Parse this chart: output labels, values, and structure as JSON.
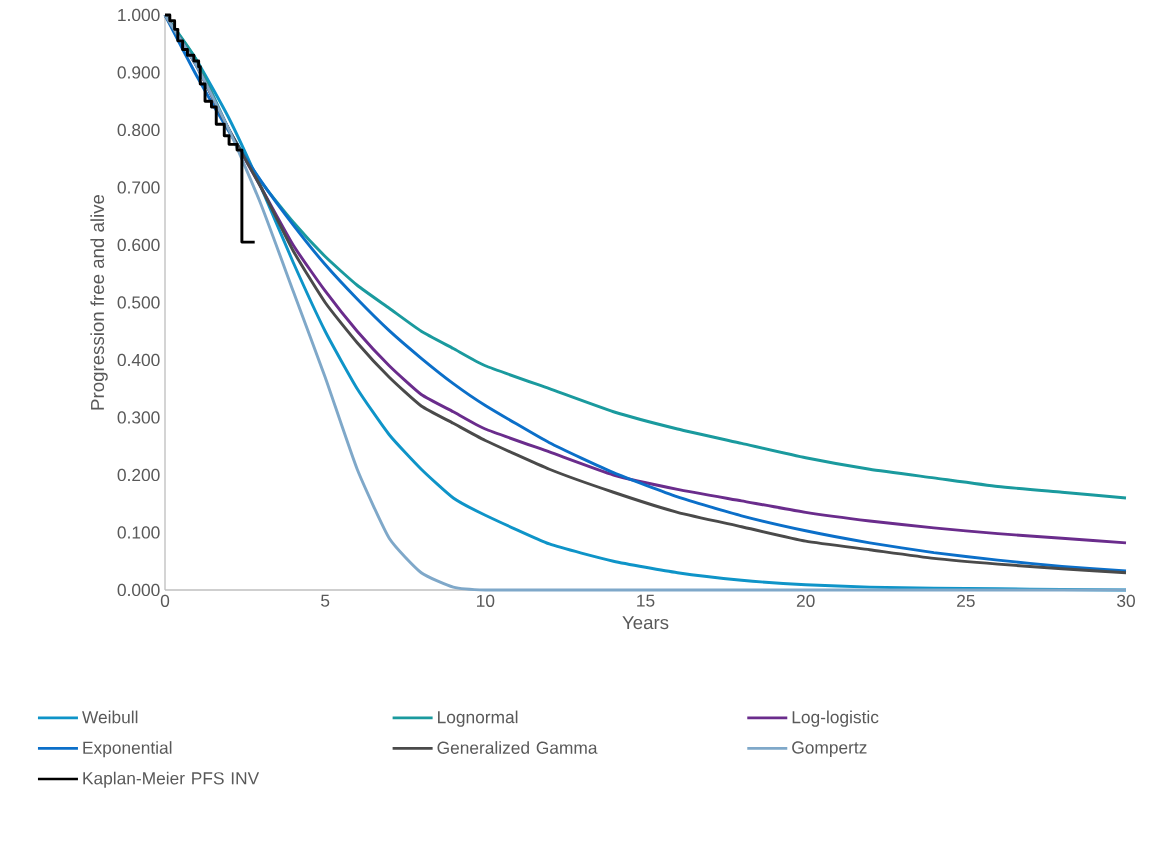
{
  "chart_data": {
    "type": "line",
    "xlabel": "Years",
    "ylabel": "Progression free and alive",
    "x": [
      0,
      1,
      2,
      3,
      4,
      5,
      6,
      7,
      8,
      9,
      10,
      12,
      14,
      16,
      18,
      20,
      22,
      24,
      26,
      28,
      30
    ],
    "series": [
      {
        "name": "Weibull",
        "color": "#0e94c8",
        "values": [
          1,
          0.92,
          0.82,
          0.7,
          0.57,
          0.45,
          0.35,
          0.27,
          0.21,
          0.16,
          0.13,
          0.08,
          0.05,
          0.03,
          0.017,
          0.009,
          0.005,
          0.003,
          0.002,
          0.001,
          0
        ]
      },
      {
        "name": "Lognormal",
        "color": "#1a9a9e",
        "values": [
          1,
          0.92,
          0.8,
          0.71,
          0.64,
          0.58,
          0.53,
          0.49,
          0.45,
          0.42,
          0.39,
          0.35,
          0.31,
          0.28,
          0.255,
          0.23,
          0.21,
          0.195,
          0.18,
          0.17,
          0.16
        ]
      },
      {
        "name": "Log-logistic",
        "color": "#6a2c8c",
        "values": [
          1,
          0.91,
          0.8,
          0.7,
          0.6,
          0.52,
          0.45,
          0.39,
          0.34,
          0.31,
          0.28,
          0.24,
          0.2,
          0.175,
          0.155,
          0.135,
          0.12,
          0.108,
          0.098,
          0.09,
          0.082
        ]
      },
      {
        "name": "Exponential",
        "color": "#0b6fc9",
        "values": [
          1,
          0.893,
          0.797,
          0.711,
          0.635,
          0.566,
          0.506,
          0.451,
          0.403,
          0.359,
          0.321,
          0.256,
          0.204,
          0.162,
          0.129,
          0.103,
          0.082,
          0.065,
          0.052,
          0.041,
          0.033
        ]
      },
      {
        "name": "Generalized Gamma",
        "color": "#4a4a4a",
        "values": [
          1,
          0.91,
          0.8,
          0.7,
          0.59,
          0.5,
          0.43,
          0.37,
          0.32,
          0.29,
          0.26,
          0.21,
          0.17,
          0.135,
          0.11,
          0.085,
          0.07,
          0.055,
          0.045,
          0.037,
          0.03
        ]
      },
      {
        "name": "Gompertz",
        "color": "#7fa8c9",
        "values": [
          1,
          0.91,
          0.8,
          0.67,
          0.52,
          0.37,
          0.21,
          0.09,
          0.03,
          0.005,
          0,
          0,
          0,
          0,
          0,
          0,
          0,
          0,
          0,
          0,
          0
        ]
      },
      {
        "name": "Kaplan-Meier PFS INV",
        "color": "#000000",
        "type": "step",
        "x": [
          0,
          0.15,
          0.3,
          0.4,
          0.55,
          0.7,
          0.9,
          1.05,
          1.1,
          1.25,
          1.45,
          1.6,
          1.85,
          2.0,
          2.25,
          2.4,
          2.8
        ],
        "values": [
          1,
          0.99,
          0.975,
          0.955,
          0.94,
          0.93,
          0.92,
          0.91,
          0.88,
          0.85,
          0.84,
          0.81,
          0.79,
          0.775,
          0.765,
          0.605,
          0.605
        ]
      }
    ],
    "xlim": [
      0,
      30
    ],
    "xticks": [
      0,
      5,
      10,
      15,
      20,
      25,
      30
    ],
    "ylim": [
      0,
      1
    ],
    "yticks": [
      {
        "value": 0,
        "label": "0.000"
      },
      {
        "value": 0.1,
        "label": "0.100"
      },
      {
        "value": 0.2,
        "label": "0.200"
      },
      {
        "value": 0.3,
        "label": "0.300"
      },
      {
        "value": 0.4,
        "label": "0.400"
      },
      {
        "value": 0.5,
        "label": "0.500"
      },
      {
        "value": 0.6,
        "label": "0.600"
      },
      {
        "value": 0.7,
        "label": "0.700"
      },
      {
        "value": 0.8,
        "label": "0.800"
      },
      {
        "value": 0.9,
        "label": "0.900"
      },
      {
        "value": 1,
        "label": "1.000"
      }
    ],
    "legend": "bottom",
    "grid": false,
    "marker": "none",
    "line_style": "solid"
  }
}
